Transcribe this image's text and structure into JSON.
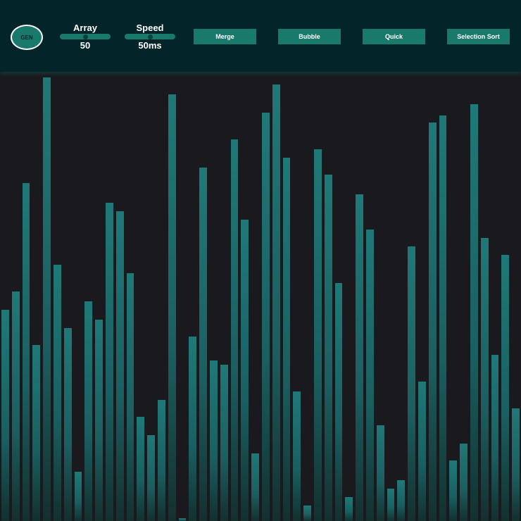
{
  "controls": {
    "generate_label": "GEN",
    "array": {
      "label": "Array",
      "value": "50",
      "fraction": 0.5
    },
    "speed": {
      "label": "Speed",
      "value": "50ms",
      "fraction": 0.5
    },
    "algorithms": [
      "Merge",
      "Bubble",
      "Quick",
      "Selection Sort"
    ]
  },
  "colors": {
    "header": "#03252a",
    "accent": "#197a6c",
    "background": "#1a191d",
    "bar_top": "#1f7978"
  },
  "array_values": [
    150,
    163,
    240,
    125,
    315,
    182,
    137,
    35,
    156,
    143,
    226,
    220,
    176,
    74,
    61,
    86,
    303,
    2,
    131,
    251,
    114,
    111,
    271,
    214,
    48,
    290,
    310,
    258,
    92,
    11,
    264,
    246,
    169,
    17,
    232,
    207,
    68,
    23,
    29,
    195,
    99,
    283,
    288,
    43,
    55,
    296,
    201,
    118,
    189,
    80
  ]
}
